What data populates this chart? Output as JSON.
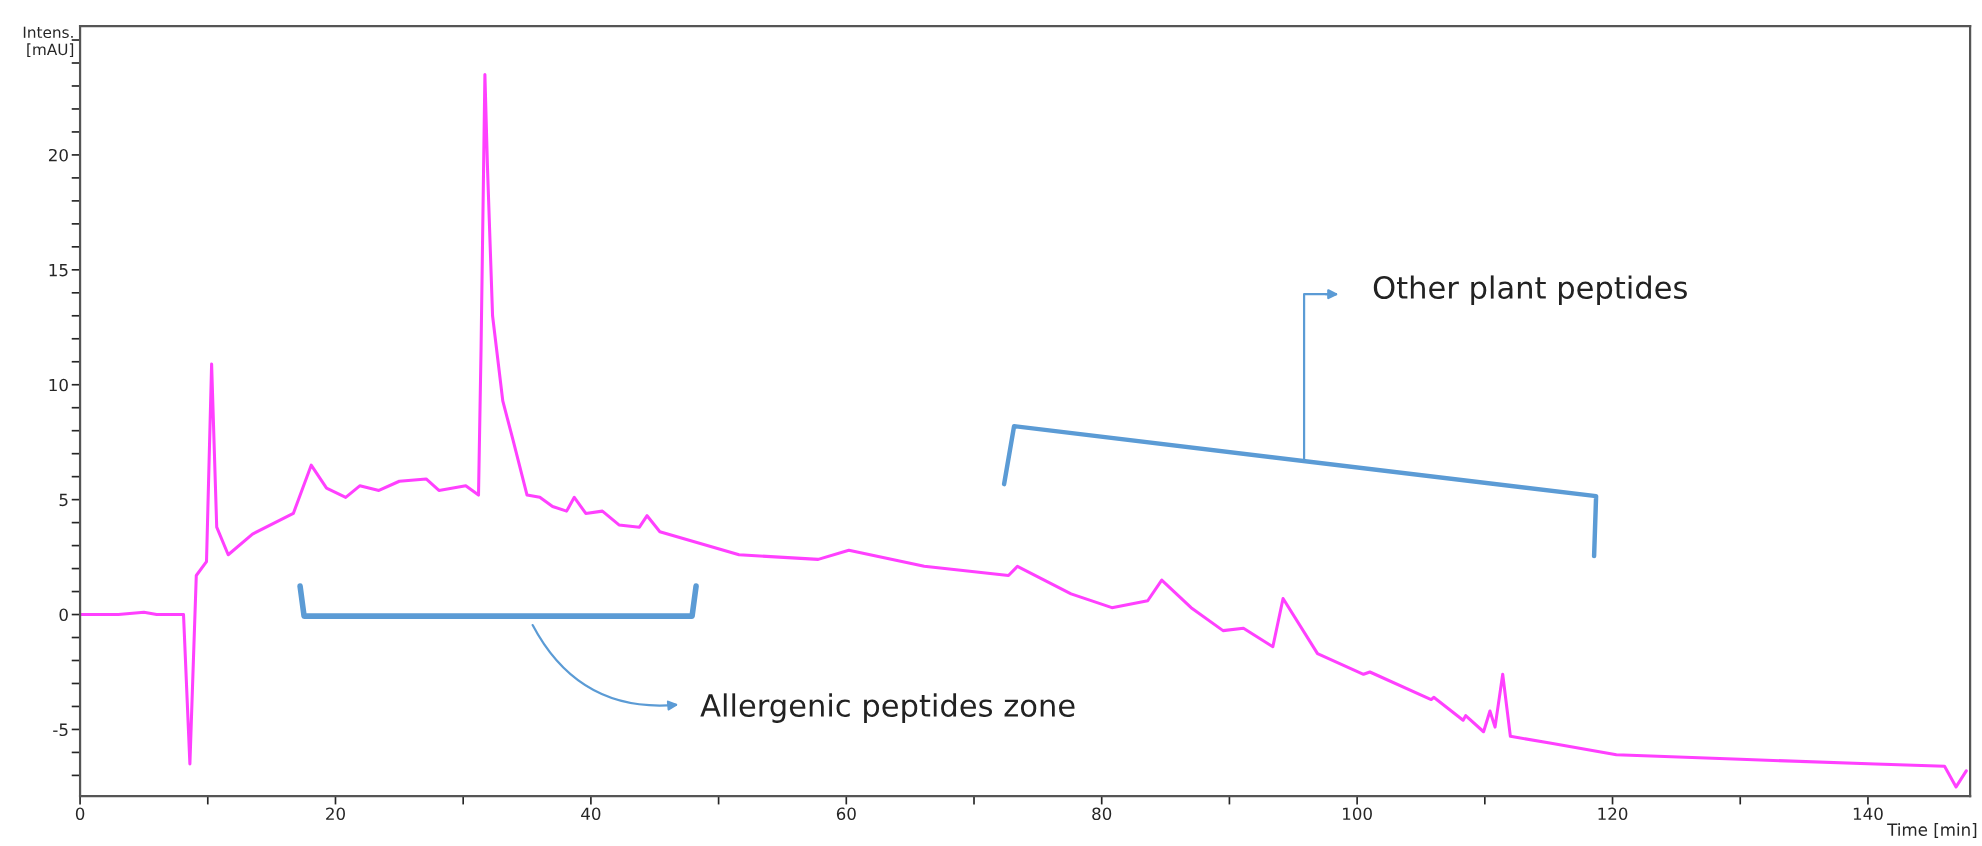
{
  "chart_data": {
    "type": "line",
    "xlabel": "Time [min]",
    "ylabel": "Intens.\n[mAU]",
    "annotations": [
      "Allergenic peptides zone",
      "Other plant peptides"
    ],
    "xlim": [
      0,
      148
    ],
    "ylim": [
      -7.9,
      25.6
    ],
    "xticks": [
      0,
      {
        "value": 10,
        "label": null
      },
      20,
      {
        "value": 30,
        "label": null
      },
      40,
      {
        "value": 50,
        "label": null
      },
      60,
      {
        "value": 70,
        "label": null
      },
      80,
      {
        "value": 90,
        "label": null
      },
      100,
      {
        "value": 110,
        "label": null
      },
      120,
      {
        "value": 130,
        "label": null
      },
      140
    ],
    "yticks": [
      {
        "value": -7,
        "label": null
      },
      {
        "value": -6,
        "label": null
      },
      -5,
      {
        "value": -4,
        "label": null
      },
      {
        "value": -3,
        "label": null
      },
      {
        "value": -2,
        "label": null
      },
      {
        "value": -1,
        "label": null
      },
      0,
      {
        "value": 1,
        "label": null
      },
      {
        "value": 2,
        "label": null
      },
      {
        "value": 3,
        "label": null
      },
      {
        "value": 4,
        "label": null
      },
      5,
      {
        "value": 6,
        "label": null
      },
      {
        "value": 7,
        "label": null
      },
      {
        "value": 8,
        "label": null
      },
      {
        "value": 9,
        "label": null
      },
      10,
      {
        "value": 11,
        "label": null
      },
      {
        "value": 12,
        "label": null
      },
      {
        "value": 13,
        "label": null
      },
      {
        "value": 14,
        "label": null
      },
      15,
      {
        "value": 16,
        "label": null
      },
      {
        "value": 17,
        "label": null
      },
      {
        "value": 18,
        "label": null
      },
      {
        "value": 19,
        "label": null
      },
      20,
      {
        "value": 21,
        "label": null
      },
      {
        "value": 22,
        "label": null
      },
      {
        "value": 23,
        "label": null
      },
      {
        "value": 24,
        "label": null
      },
      {
        "value": 25,
        "label": null
      }
    ],
    "grid": false,
    "marker": "none",
    "line_style": "solid",
    "series": [
      {
        "color": "#ff40ff",
        "x": [
          0,
          3,
          5,
          6,
          8.1,
          8.6,
          9.1,
          9.9,
          10.3,
          10.7,
          11.6,
          13.5,
          16.7,
          18.1,
          19.3,
          20.8,
          21.9,
          23.4,
          25,
          27.1,
          28.1,
          30.2,
          31.2,
          31.4,
          31.7,
          31.9,
          32.3,
          33.1,
          33.9,
          35,
          36,
          37,
          38.1,
          38.7,
          39.6,
          40.9,
          42.2,
          43.8,
          44.4,
          45.4,
          51.6,
          57.8,
          60.2,
          66.1,
          72.7,
          73.4,
          77.6,
          80.8,
          83.6,
          84.7,
          87,
          89.5,
          91.1,
          93.4,
          94.2,
          96.9,
          100.5,
          101.0,
          105.8,
          106.0,
          108.3,
          108.5,
          109.9,
          110.4,
          110.8,
          111.4,
          112,
          115.2,
          120.3,
          130,
          140.6,
          146,
          146.9,
          147.7
        ],
        "values": [
          0,
          0,
          0.1,
          0,
          0,
          -6.5,
          1.7,
          2.3,
          10.9,
          3.8,
          2.6,
          3.5,
          4.4,
          6.5,
          5.5,
          5.1,
          5.6,
          5.4,
          5.8,
          5.9,
          5.4,
          5.6,
          5.2,
          11.6,
          23.5,
          19.5,
          13,
          9.3,
          7.6,
          5.2,
          5.1,
          4.7,
          4.5,
          5.1,
          4.4,
          4.5,
          3.9,
          3.8,
          4.3,
          3.6,
          2.6,
          2.4,
          2.8,
          2.1,
          1.7,
          2.1,
          0.9,
          0.3,
          0.6,
          1.5,
          0.3,
          -0.7,
          -0.6,
          -1.4,
          0.7,
          -1.7,
          -2.6,
          -2.5,
          -3.7,
          -3.6,
          -4.6,
          -4.4,
          -5.1,
          -4.2,
          -4.9,
          -2.6,
          -5.3,
          -5.6,
          -6.1,
          -6.3,
          -6.5,
          -6.6,
          -7.5,
          -6.8
        ]
      }
    ]
  }
}
